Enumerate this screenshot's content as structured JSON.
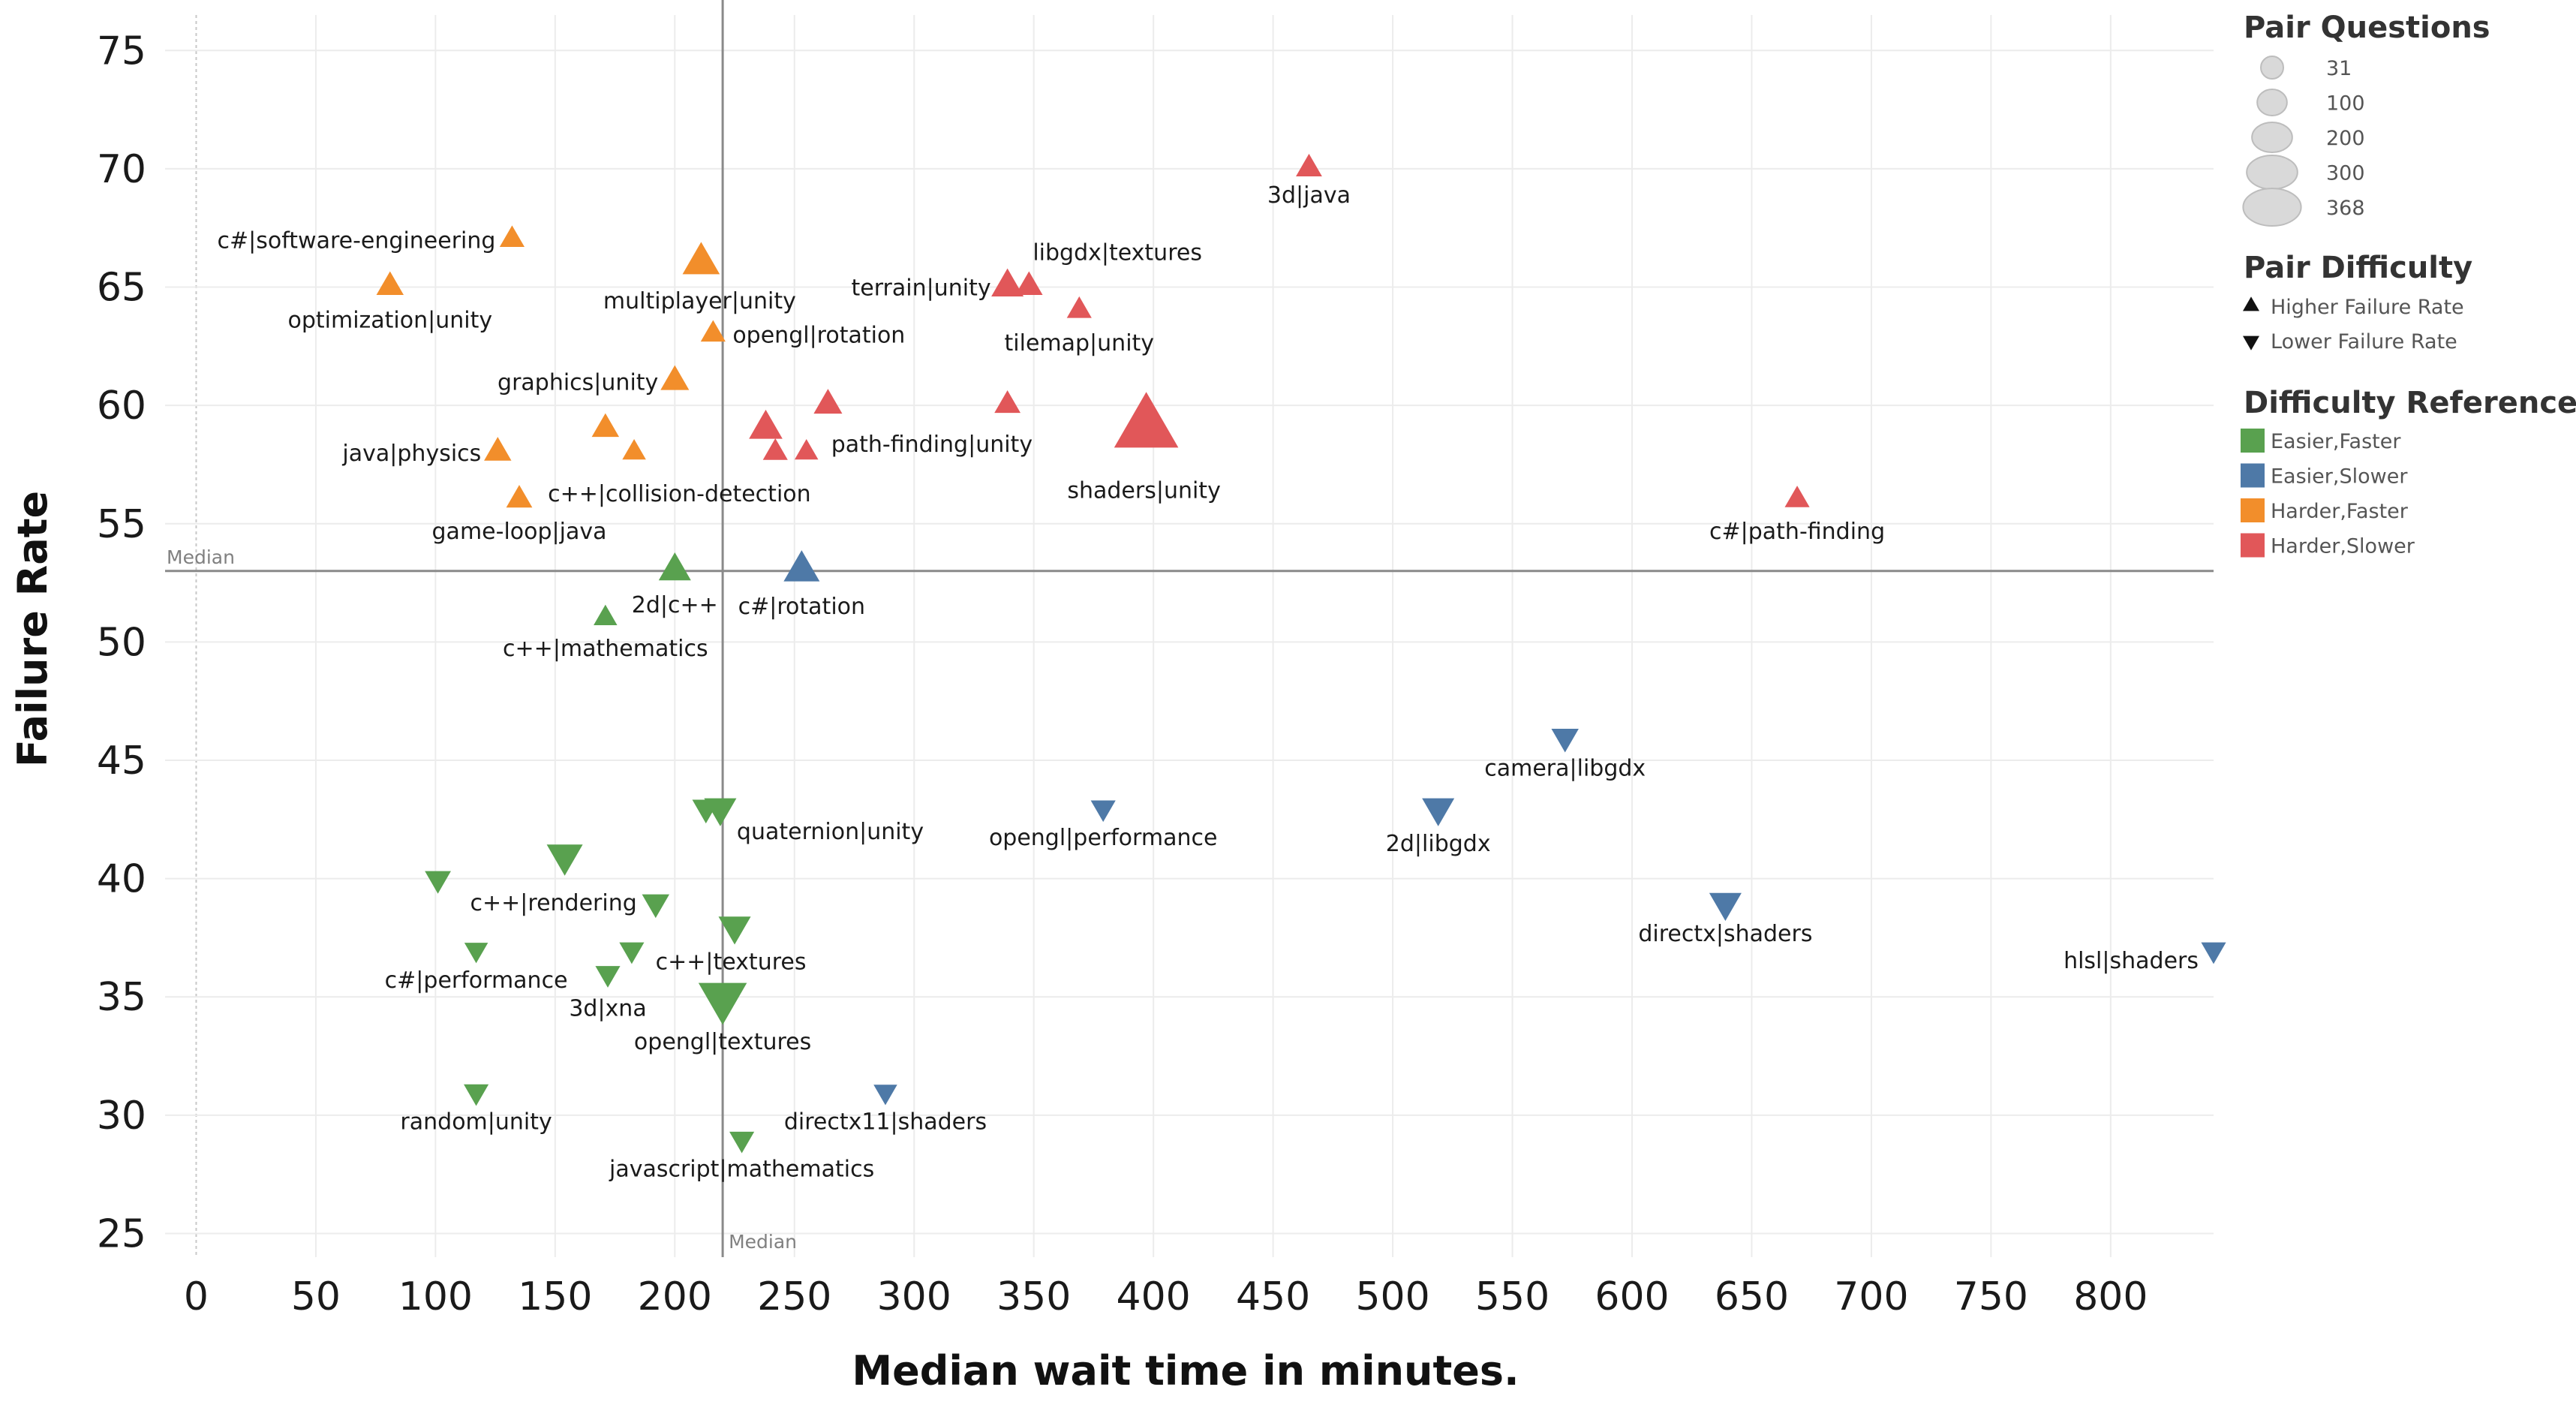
{
  "chart_data": {
    "type": "scatter",
    "xlabel": "Median wait time in minutes.",
    "ylabel": "Failure Rate",
    "xlim": [
      -13,
      843
    ],
    "ylim": [
      24,
      76.5
    ],
    "xticks": [
      0,
      50,
      100,
      150,
      200,
      250,
      300,
      350,
      400,
      450,
      500,
      550,
      600,
      650,
      700,
      750,
      800
    ],
    "yticks": [
      25,
      30,
      35,
      40,
      45,
      50,
      55,
      60,
      65,
      70,
      75
    ],
    "median": {
      "x": 220,
      "y": 53,
      "label": "Median"
    },
    "grid": true,
    "colors": {
      "Easier,Faster": "#59a14f",
      "Easier,Slower": "#4e79a7",
      "Harder,Faster": "#f28e2b",
      "Harder,Slower": "#e15759"
    },
    "points": [
      {
        "label": "3d|java",
        "x": 465,
        "y": 70,
        "size": 60,
        "dir": "up",
        "cat": "Harder,Slower"
      },
      {
        "label": "c#|software-engineering",
        "x": 132,
        "y": 67,
        "size": 50,
        "dir": "up",
        "cat": "Harder,Faster"
      },
      {
        "label": "libgdx|textures",
        "x": 348,
        "y": 65,
        "size": 70,
        "dir": "up",
        "cat": "Harder,Slower"
      },
      {
        "label": "terrain|unity",
        "x": 339,
        "y": 65,
        "size": 110,
        "dir": "up",
        "cat": "Harder,Slower"
      },
      {
        "label": "multiplayer|unity",
        "x": 211,
        "y": 66,
        "size": 150,
        "dir": "up",
        "cat": "Harder,Faster"
      },
      {
        "label": "optimization|unity",
        "x": 81,
        "y": 65,
        "size": 70,
        "dir": "up",
        "cat": "Harder,Faster"
      },
      {
        "label": "tilemap|unity",
        "x": 369,
        "y": 64,
        "size": 50,
        "dir": "up",
        "cat": "Harder,Slower"
      },
      {
        "label": "opengl|rotation",
        "x": 216,
        "y": 63,
        "size": 50,
        "dir": "up",
        "cat": "Harder,Faster"
      },
      {
        "label": "graphics|unity",
        "x": 200,
        "y": 61,
        "size": 80,
        "dir": "up",
        "cat": "Harder,Faster"
      },
      {
        "label": "",
        "x": 264,
        "y": 60,
        "size": 80,
        "dir": "up",
        "cat": "Harder,Slower"
      },
      {
        "label": "",
        "x": 339,
        "y": 60,
        "size": 60,
        "dir": "up",
        "cat": "Harder,Slower"
      },
      {
        "label": "shaders|unity",
        "x": 397,
        "y": 59,
        "size": 368,
        "dir": "up",
        "cat": "Harder,Slower"
      },
      {
        "label": "",
        "x": 238,
        "y": 59,
        "size": 120,
        "dir": "up",
        "cat": "Harder,Slower"
      },
      {
        "label": "path-finding|unity",
        "x": 255,
        "y": 58,
        "size": 40,
        "dir": "up",
        "cat": "Harder,Slower"
      },
      {
        "label": "",
        "x": 242,
        "y": 58,
        "size": 50,
        "dir": "up",
        "cat": "Harder,Slower"
      },
      {
        "label": "",
        "x": 171,
        "y": 59,
        "size": 70,
        "dir": "up",
        "cat": "Harder,Faster"
      },
      {
        "label": "java|physics",
        "x": 126,
        "y": 58,
        "size": 70,
        "dir": "up",
        "cat": "Harder,Faster"
      },
      {
        "label": "c++|collision-detection",
        "x": 183,
        "y": 58,
        "size": 40,
        "dir": "up",
        "cat": "Harder,Faster"
      },
      {
        "label": "game-loop|java",
        "x": 135,
        "y": 56,
        "size": 60,
        "dir": "up",
        "cat": "Harder,Faster"
      },
      {
        "label": "c#|path-finding",
        "x": 669,
        "y": 56,
        "size": 50,
        "dir": "up",
        "cat": "Harder,Slower"
      },
      {
        "label": "2d|c++",
        "x": 200,
        "y": 53,
        "size": 110,
        "dir": "up",
        "cat": "Easier,Faster"
      },
      {
        "label": "c#|rotation",
        "x": 253,
        "y": 53,
        "size": 140,
        "dir": "up",
        "cat": "Easier,Slower"
      },
      {
        "label": "c++|mathematics",
        "x": 171,
        "y": 51,
        "size": 40,
        "dir": "up",
        "cat": "Easier,Faster"
      },
      {
        "label": "camera|libgdx",
        "x": 572,
        "y": 46,
        "size": 70,
        "dir": "down",
        "cat": "Easier,Slower"
      },
      {
        "label": "2d|libgdx",
        "x": 519,
        "y": 43,
        "size": 110,
        "dir": "down",
        "cat": "Easier,Slower"
      },
      {
        "label": "opengl|performance",
        "x": 379,
        "y": 43,
        "size": 50,
        "dir": "down",
        "cat": "Easier,Slower"
      },
      {
        "label": "quaternion|unity",
        "x": 219,
        "y": 43,
        "size": 110,
        "dir": "down",
        "cat": "Easier,Faster"
      },
      {
        "label": "",
        "x": 213,
        "y": 43,
        "size": 70,
        "dir": "down",
        "cat": "Easier,Faster"
      },
      {
        "label": "",
        "x": 154,
        "y": 41,
        "size": 140,
        "dir": "down",
        "cat": "Easier,Faster"
      },
      {
        "label": "",
        "x": 101,
        "y": 40,
        "size": 60,
        "dir": "down",
        "cat": "Easier,Faster"
      },
      {
        "label": "c++|rendering",
        "x": 192,
        "y": 39,
        "size": 70,
        "dir": "down",
        "cat": "Easier,Faster"
      },
      {
        "label": "directx|shaders",
        "x": 639,
        "y": 39,
        "size": 110,
        "dir": "down",
        "cat": "Easier,Slower"
      },
      {
        "label": "c++|textures",
        "x": 225,
        "y": 38,
        "size": 110,
        "dir": "down",
        "cat": "Easier,Faster"
      },
      {
        "label": "hlsl|shaders",
        "x": 843,
        "y": 37,
        "size": 50,
        "dir": "down",
        "cat": "Easier,Slower"
      },
      {
        "label": "c#|performance",
        "x": 117,
        "y": 37,
        "size": 40,
        "dir": "down",
        "cat": "Easier,Faster"
      },
      {
        "label": "",
        "x": 182,
        "y": 37,
        "size": 50,
        "dir": "down",
        "cat": "Easier,Faster"
      },
      {
        "label": "3d|xna",
        "x": 172,
        "y": 36,
        "size": 50,
        "dir": "down",
        "cat": "Easier,Faster"
      },
      {
        "label": "opengl|textures",
        "x": 220,
        "y": 35,
        "size": 240,
        "dir": "down",
        "cat": "Easier,Faster"
      },
      {
        "label": "random|unity",
        "x": 117,
        "y": 31,
        "size": 50,
        "dir": "down",
        "cat": "Easier,Faster"
      },
      {
        "label": "directx11|shaders",
        "x": 288,
        "y": 31,
        "size": 40,
        "dir": "down",
        "cat": "Easier,Slower"
      },
      {
        "label": "javascript|mathematics",
        "x": 228,
        "y": 29,
        "size": 50,
        "dir": "down",
        "cat": "Easier,Faster"
      }
    ],
    "legend": {
      "size_title": "Pair Questions",
      "size_values": [
        31,
        100,
        200,
        300,
        368
      ],
      "size_labels": [
        "31",
        "100",
        "200",
        "300",
        "368"
      ],
      "shape_title": "Pair Difficulty",
      "shapes": [
        {
          "dir": "up",
          "label": "Higher Failure Rate"
        },
        {
          "dir": "down",
          "label": "Lower Failure Rate"
        }
      ],
      "color_title": "Difficulty References",
      "colors": [
        {
          "label": "Easier,Faster",
          "color": "#59a14f"
        },
        {
          "label": "Easier,Slower",
          "color": "#4e79a7"
        },
        {
          "label": "Harder,Faster",
          "color": "#f28e2b"
        },
        {
          "label": "Harder,Slower",
          "color": "#e15759"
        }
      ]
    }
  }
}
